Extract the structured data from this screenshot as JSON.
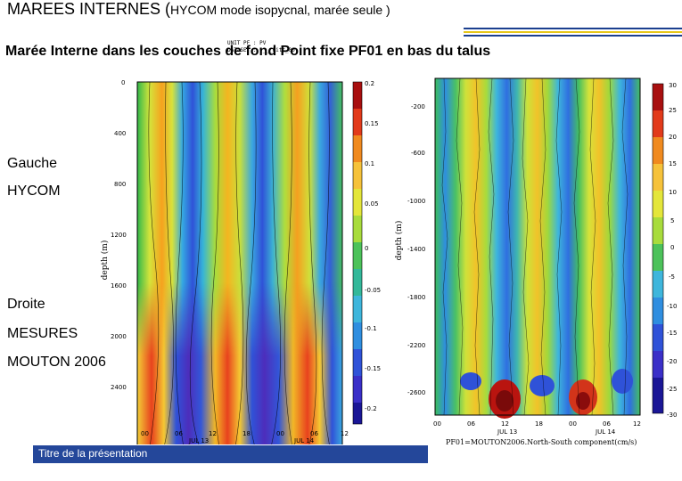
{
  "slide": {
    "title_main": "MAREES INTERNES (",
    "title_small": "HYCOM mode isopycnal,  marée seule )",
    "subtitle": "Marée Interne dans les couches de fond Point fixe PF01 en bas du talus",
    "left_labels": [
      "Gauche",
      "HYCOM"
    ],
    "right_labels": [
      "Droite",
      "MESURES",
      "MOUTON 2006"
    ],
    "footer": "Titre de la présentation",
    "accent_blue": "#24479a",
    "accent_yellow": "#e6c619"
  },
  "left_plot": {
    "ylabel": "depth (m)",
    "y_ticks": [
      "0",
      "400",
      "800",
      "1200",
      "1600",
      "2000",
      "2400"
    ],
    "x_ticks": [
      "00",
      "06",
      "12",
      "18",
      "00",
      "06",
      "12"
    ],
    "dates": [
      "JUL 13",
      "JUL 14"
    ],
    "colorbar_ticks": [
      "0.2",
      "0.15",
      "0.1",
      "0.05",
      "0",
      "-0.05",
      "-0.1",
      "-0.15",
      "-0.2"
    ]
  },
  "right_plot": {
    "ylabel": "depth (m)",
    "y_ticks": [
      "-200",
      "-600",
      "-1000",
      "-1400",
      "-1800",
      "-2200",
      "-2600"
    ],
    "x_ticks": [
      "00",
      "06",
      "12",
      "18",
      "00",
      "06",
      "12"
    ],
    "dates": [
      "JUL 13",
      "JUL 14"
    ],
    "colorbar_ticks": [
      "30",
      "25",
      "20",
      "15",
      "10",
      "5",
      "0",
      "-5",
      "-10",
      "-15",
      "-20",
      "-25",
      "-30"
    ],
    "caption": "PF01=MOUTON2006.North-South component(cm/s)"
  }
}
